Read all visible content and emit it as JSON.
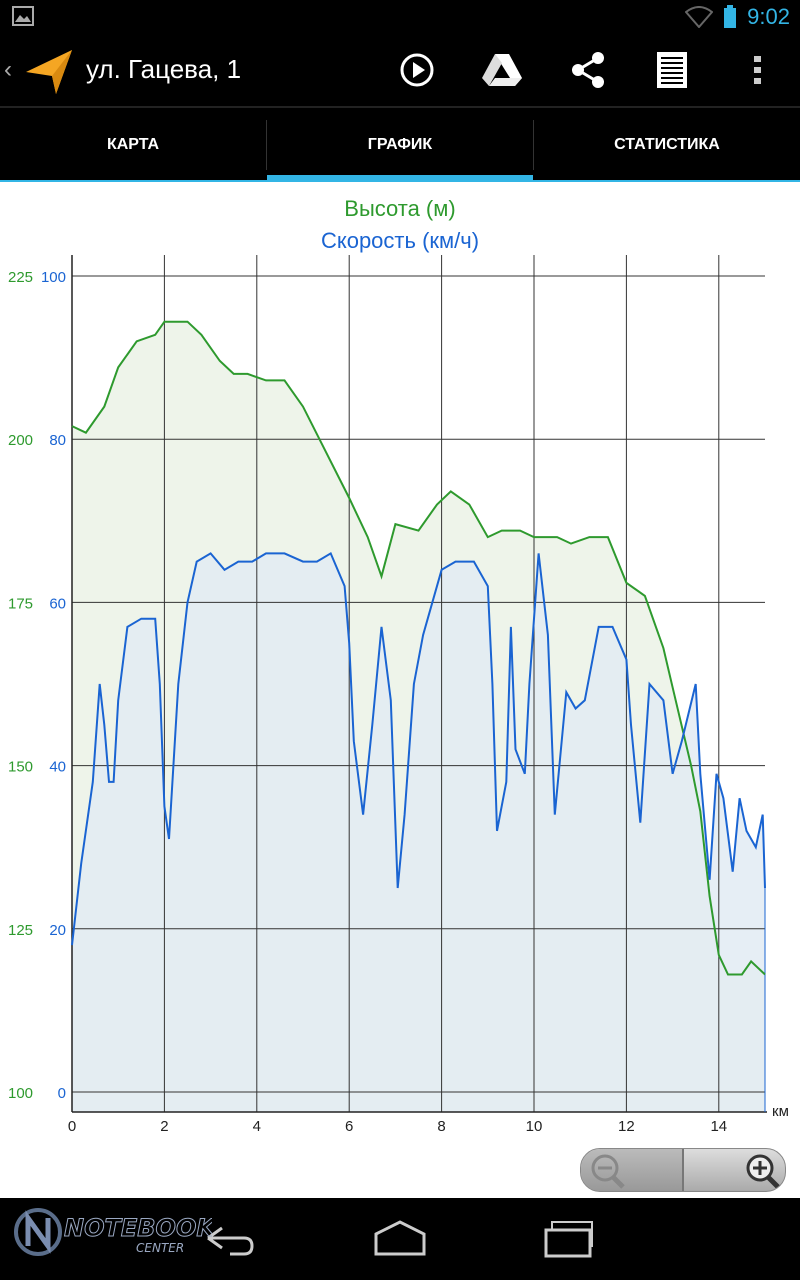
{
  "status_bar": {
    "time": "9:02",
    "icons": [
      "image-icon",
      "wifi-icon",
      "battery-icon"
    ]
  },
  "action_bar": {
    "title": "ул. Гацева, 1",
    "actions": [
      "play-icon",
      "google-drive-icon",
      "share-icon",
      "list-icon",
      "overflow-menu-icon"
    ]
  },
  "tabs": [
    {
      "label": "КАРТА",
      "selected": false
    },
    {
      "label": "ГРАФИК",
      "selected": true
    },
    {
      "label": "СТАТИСТИКА",
      "selected": false
    }
  ],
  "colors": {
    "accent": "#33b5e5",
    "elevation": "#2e9a2e",
    "speed": "#1a64d2"
  },
  "chart_data": {
    "type": "line",
    "series": [
      {
        "name": "Высота (м)",
        "axis": "left",
        "points": [
          [
            0,
            202
          ],
          [
            0.3,
            201
          ],
          [
            0.7,
            205
          ],
          [
            1,
            211
          ],
          [
            1.4,
            215
          ],
          [
            1.8,
            216
          ],
          [
            2,
            218
          ],
          [
            2.5,
            218
          ],
          [
            2.8,
            216
          ],
          [
            3.2,
            212
          ],
          [
            3.5,
            210
          ],
          [
            3.8,
            210
          ],
          [
            4.2,
            209
          ],
          [
            4.6,
            209
          ],
          [
            5,
            205
          ],
          [
            5.5,
            198
          ],
          [
            6,
            191
          ],
          [
            6.4,
            185
          ],
          [
            6.7,
            179
          ],
          [
            7,
            187
          ],
          [
            7.5,
            186
          ],
          [
            7.9,
            190
          ],
          [
            8.2,
            192
          ],
          [
            8.6,
            190
          ],
          [
            9,
            185
          ],
          [
            9.3,
            186
          ],
          [
            9.7,
            186
          ],
          [
            10,
            185
          ],
          [
            10.5,
            185
          ],
          [
            10.8,
            184
          ],
          [
            11.2,
            185
          ],
          [
            11.6,
            185
          ],
          [
            12,
            178
          ],
          [
            12.4,
            176
          ],
          [
            12.8,
            168
          ],
          [
            13,
            162
          ],
          [
            13.4,
            150
          ],
          [
            13.6,
            143
          ],
          [
            13.8,
            130
          ],
          [
            14,
            121
          ],
          [
            14.2,
            118
          ],
          [
            14.5,
            118
          ],
          [
            14.7,
            120
          ],
          [
            15,
            118
          ]
        ],
        "ylim": [
          100,
          225
        ],
        "ticks": [
          100,
          125,
          150,
          175,
          200,
          225
        ]
      },
      {
        "name": "Скорость (км/ч)",
        "axis": "right",
        "points": [
          [
            0,
            18
          ],
          [
            0.2,
            28
          ],
          [
            0.45,
            38
          ],
          [
            0.6,
            50
          ],
          [
            0.7,
            45
          ],
          [
            0.8,
            38
          ],
          [
            0.9,
            38
          ],
          [
            1,
            48
          ],
          [
            1.2,
            57
          ],
          [
            1.5,
            58
          ],
          [
            1.8,
            58
          ],
          [
            1.9,
            50
          ],
          [
            2,
            35
          ],
          [
            2.1,
            31
          ],
          [
            2.3,
            50
          ],
          [
            2.5,
            60
          ],
          [
            2.7,
            65
          ],
          [
            3,
            66
          ],
          [
            3.3,
            64
          ],
          [
            3.6,
            65
          ],
          [
            3.9,
            65
          ],
          [
            4.2,
            66
          ],
          [
            4.6,
            66
          ],
          [
            5,
            65
          ],
          [
            5.3,
            65
          ],
          [
            5.6,
            66
          ],
          [
            5.9,
            62
          ],
          [
            6,
            55
          ],
          [
            6.1,
            43
          ],
          [
            6.3,
            34
          ],
          [
            6.5,
            45
          ],
          [
            6.7,
            57
          ],
          [
            6.9,
            48
          ],
          [
            7.05,
            25
          ],
          [
            7.2,
            34
          ],
          [
            7.4,
            50
          ],
          [
            7.6,
            56
          ],
          [
            8,
            64
          ],
          [
            8.3,
            65
          ],
          [
            8.7,
            65
          ],
          [
            9,
            62
          ],
          [
            9.1,
            50
          ],
          [
            9.2,
            32
          ],
          [
            9.4,
            38
          ],
          [
            9.5,
            57
          ],
          [
            9.6,
            42
          ],
          [
            9.8,
            39
          ],
          [
            9.9,
            50
          ],
          [
            10.1,
            66
          ],
          [
            10.3,
            56
          ],
          [
            10.45,
            34
          ],
          [
            10.7,
            49
          ],
          [
            10.9,
            47
          ],
          [
            11.1,
            48
          ],
          [
            11.4,
            57
          ],
          [
            11.7,
            57
          ],
          [
            12,
            53
          ],
          [
            12.1,
            45
          ],
          [
            12.3,
            33
          ],
          [
            12.5,
            50
          ],
          [
            12.8,
            48
          ],
          [
            13,
            39
          ],
          [
            13.2,
            43
          ],
          [
            13.5,
            50
          ],
          [
            13.6,
            39
          ],
          [
            13.8,
            26
          ],
          [
            13.95,
            39
          ],
          [
            14.1,
            36
          ],
          [
            14.3,
            27
          ],
          [
            14.45,
            36
          ],
          [
            14.6,
            32
          ],
          [
            14.8,
            30
          ],
          [
            14.95,
            34
          ],
          [
            15,
            25
          ]
        ],
        "ylim": [
          0,
          100
        ],
        "ticks": [
          0,
          20,
          40,
          60,
          80,
          100
        ]
      }
    ],
    "xlim": [
      0,
      15
    ],
    "xticks": [
      0,
      2,
      4,
      6,
      8,
      10,
      12,
      14
    ],
    "xunit": "км",
    "grid": true,
    "legend_placement": "top-center"
  },
  "navbar": {
    "buttons": [
      "back-icon",
      "home-icon",
      "recent-apps-icon"
    ]
  },
  "watermark_text": "NOTEBOOK CENTER"
}
